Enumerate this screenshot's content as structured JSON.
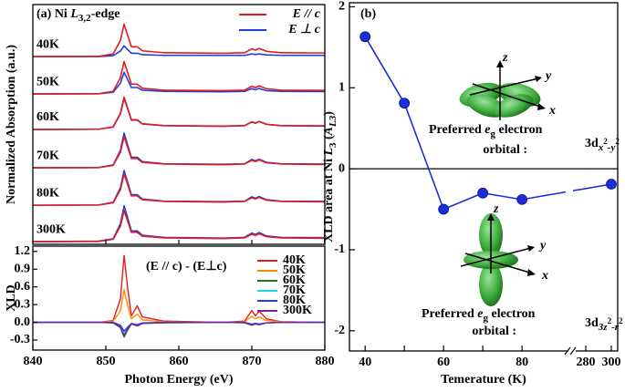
{
  "chart_data": [
    {
      "type": "line",
      "title": [
        "(a) Ni ",
        "L",
        "3,2",
        "-edge"
      ],
      "ylabel": "Normalized Absorption (a.u.)",
      "xlim": [
        840,
        880
      ],
      "ylim": [
        0,
        10
      ],
      "legend": [
        {
          "name": "E // c",
          "color": "#e41a1c"
        },
        {
          "name": "E ⊥ c",
          "color": "#1f3fe0"
        }
      ],
      "x": [
        840,
        849,
        851,
        852,
        852.5,
        853,
        853.5,
        854.3,
        855,
        858,
        866,
        869,
        870,
        870.5,
        871,
        872,
        874,
        880
      ],
      "spectra": [
        {
          "label": "40K",
          "parallel": [
            7.83,
            7.84,
            7.94,
            8.51,
            9.18,
            8.71,
            8.24,
            8.24,
            8.07,
            7.99,
            7.97,
            7.99,
            8.15,
            8.1,
            8.17,
            8.05,
            7.99,
            7.98
          ],
          "perpendicular": [
            7.83,
            7.83,
            7.87,
            8.06,
            8.28,
            8.12,
            7.97,
            7.97,
            7.91,
            7.88,
            7.88,
            7.88,
            7.94,
            7.92,
            7.94,
            7.9,
            7.88,
            7.88
          ]
        },
        {
          "label": "50K",
          "parallel": [
            6.27,
            6.28,
            6.38,
            6.95,
            7.62,
            7.15,
            6.68,
            6.68,
            6.51,
            6.43,
            6.41,
            6.43,
            6.59,
            6.54,
            6.61,
            6.49,
            6.43,
            6.42
          ],
          "perpendicular": [
            6.27,
            6.28,
            6.34,
            6.72,
            7.17,
            6.86,
            6.54,
            6.54,
            6.43,
            6.38,
            6.36,
            6.38,
            6.49,
            6.45,
            6.5,
            6.41,
            6.38,
            6.37
          ]
        },
        {
          "label": "60K",
          "parallel": [
            4.79,
            4.8,
            4.9,
            5.47,
            6.14,
            5.67,
            5.2,
            5.2,
            5.03,
            4.95,
            4.93,
            4.95,
            5.11,
            5.06,
            5.13,
            5.01,
            4.95,
            4.94
          ],
          "perpendicular": [
            4.79,
            4.8,
            4.89,
            5.44,
            6.09,
            5.64,
            5.18,
            5.18,
            5.02,
            4.95,
            4.92,
            4.95,
            5.1,
            5.05,
            5.12,
            5,
            4.95,
            4.93
          ]
        },
        {
          "label": "70K",
          "parallel": [
            3.19,
            3.2,
            3.29,
            3.84,
            4.49,
            4.04,
            3.58,
            3.58,
            3.42,
            3.35,
            3.32,
            3.35,
            3.5,
            3.45,
            3.52,
            3.4,
            3.35,
            3.33
          ],
          "perpendicular": [
            3.19,
            3.2,
            3.31,
            3.92,
            4.64,
            4.13,
            3.63,
            3.63,
            3.45,
            3.36,
            3.34,
            3.36,
            3.54,
            3.48,
            3.55,
            3.42,
            3.36,
            3.35
          ]
        },
        {
          "label": "80K",
          "parallel": [
            1.63,
            1.64,
            1.73,
            2.28,
            2.93,
            2.48,
            2.02,
            2.02,
            1.86,
            1.79,
            1.76,
            1.79,
            1.94,
            1.89,
            1.96,
            1.84,
            1.79,
            1.77
          ],
          "perpendicular": [
            1.63,
            1.64,
            1.75,
            2.36,
            3.08,
            2.57,
            2.07,
            2.07,
            1.89,
            1.8,
            1.78,
            1.8,
            1.98,
            1.92,
            1.99,
            1.86,
            1.8,
            1.79
          ]
        },
        {
          "label": "300K",
          "parallel": [
            0.11,
            0.12,
            0.21,
            0.76,
            1.41,
            0.96,
            0.5,
            0.5,
            0.34,
            0.27,
            0.24,
            0.27,
            0.42,
            0.37,
            0.44,
            0.32,
            0.27,
            0.25
          ],
          "perpendicular": [
            0.11,
            0.13,
            0.23,
            0.86,
            1.61,
            1.09,
            0.56,
            0.56,
            0.38,
            0.29,
            0.26,
            0.29,
            0.47,
            0.41,
            0.49,
            0.35,
            0.29,
            0.28
          ]
        }
      ]
    },
    {
      "type": "line",
      "ylabel": "XLD",
      "xlabel": "Photon Energy (eV)",
      "annotation": "(E // c) - (E⊥c)",
      "xlim": [
        840,
        880
      ],
      "xticks": [
        840,
        850,
        860,
        870,
        880
      ],
      "ylim": [
        -0.47,
        1.29
      ],
      "yticks": [
        -0.3,
        {
          "value": 0,
          "label": "0.0"
        },
        0.3,
        0.6,
        0.9,
        1.2
      ],
      "x": [
        840,
        849,
        851,
        852,
        852.5,
        853,
        853.5,
        854.3,
        855,
        858,
        866,
        869,
        870,
        870.5,
        871,
        872,
        874,
        880
      ],
      "series": [
        {
          "name": "40K",
          "color": "#e41a1c",
          "values": [
            0,
            0,
            0.03,
            0.4,
            1.13,
            0.57,
            0.11,
            0.28,
            0.09,
            0.02,
            0,
            0.02,
            0.2,
            0.11,
            0.19,
            0.06,
            0.01,
            0
          ]
        },
        {
          "name": "50K",
          "color": "#ff8c00",
          "values": [
            0,
            0,
            0.02,
            0.19,
            0.55,
            0.28,
            0.06,
            0.14,
            0.04,
            0.01,
            0,
            0.01,
            0.1,
            0.06,
            0.09,
            0.03,
            0.01,
            0
          ]
        },
        {
          "name": "60K",
          "color": "#1a7a1a",
          "values": [
            0,
            0,
            -0.01,
            -0.09,
            -0.25,
            -0.13,
            -0.03,
            -0.06,
            -0.02,
            -0.01,
            0,
            -0.01,
            -0.05,
            -0.03,
            -0.04,
            -0.01,
            0,
            0
          ]
        },
        {
          "name": "70K",
          "color": "#22d3e6",
          "values": [
            0,
            0,
            -0.01,
            -0.07,
            -0.2,
            -0.1,
            -0.02,
            -0.05,
            -0.02,
            0,
            0,
            0,
            -0.04,
            -0.02,
            -0.03,
            -0.01,
            0,
            0
          ]
        },
        {
          "name": "80K",
          "color": "#1f3fe0",
          "values": [
            0,
            0,
            0,
            -0.05,
            -0.15,
            -0.08,
            -0.02,
            -0.04,
            -0.01,
            0,
            0,
            0,
            -0.03,
            -0.02,
            -0.03,
            -0.01,
            0,
            0
          ]
        },
        {
          "name": "300K",
          "color": "#7b1fa2",
          "values": [
            0,
            0,
            -0.01,
            -0.08,
            -0.22,
            -0.11,
            -0.02,
            -0.06,
            -0.02,
            0,
            0,
            0,
            -0.04,
            -0.02,
            -0.04,
            -0.01,
            0,
            0
          ]
        }
      ]
    },
    {
      "type": "line",
      "panel_label": "(b)",
      "ylabel": [
        "XLD area at Ni ",
        "L",
        "3",
        " (",
        "A",
        "L3",
        ")"
      ],
      "xlabel": "Temerature (K)",
      "x": [
        40,
        50,
        60,
        70,
        80,
        300
      ],
      "values": [
        1.63,
        0.81,
        -0.5,
        -0.3,
        -0.38,
        -0.19
      ],
      "color": "#1a2fd6",
      "xlim": [
        36,
        305
      ],
      "xbreak": [
        93,
        270
      ],
      "xticks": [
        40,
        50,
        60,
        70,
        80,
        280,
        300
      ],
      "ylim": [
        -2.25,
        2.05
      ],
      "yticks": [
        -2,
        -1,
        0,
        1,
        2
      ],
      "reference_line": 0,
      "orbital_axes": [
        "z",
        "y",
        "x"
      ],
      "annotations": [
        {
          "line1": [
            "Preferred ",
            "e",
            "g",
            " electron"
          ],
          "line2": "orbital :",
          "orbital": [
            "3d",
            "x",
            "2",
            "-y",
            "2"
          ]
        },
        {
          "line1": [
            "Preferred ",
            "e",
            "g",
            " electron"
          ],
          "line2": "orbital :",
          "orbital": [
            "3d",
            "3z",
            "2",
            "-r",
            "2"
          ]
        }
      ]
    }
  ]
}
